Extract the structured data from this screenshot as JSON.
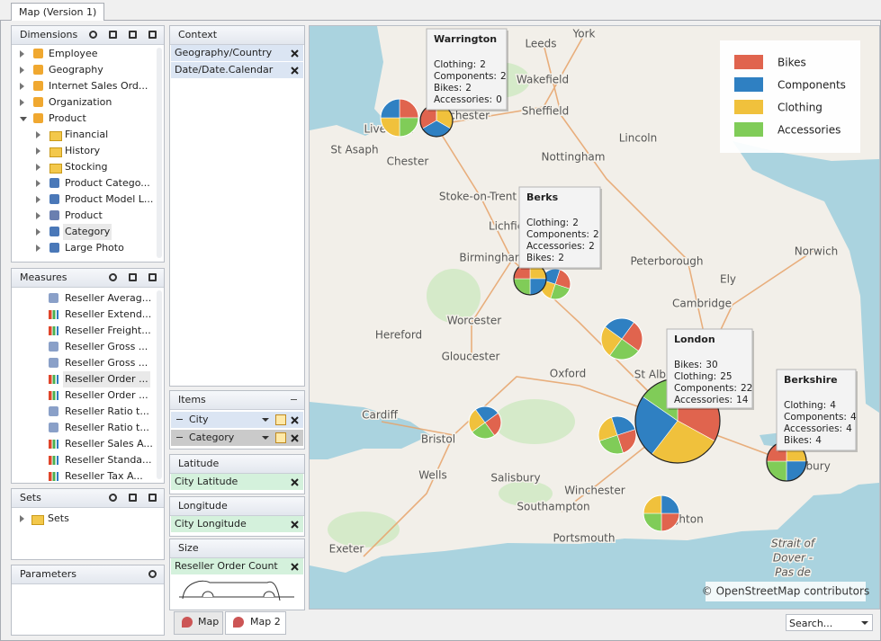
{
  "window_tab": "Map (Version 1)",
  "dimensions": {
    "title": "Dimensions",
    "items": [
      {
        "label": "Employee"
      },
      {
        "label": "Geography"
      },
      {
        "label": "Internet Sales Ord..."
      },
      {
        "label": "Organization"
      },
      {
        "label": "Product",
        "children": [
          "Financial",
          "History",
          "Stocking",
          "Product Catego...",
          "Product Model L...",
          "Product",
          "Category",
          "Large Photo"
        ]
      }
    ]
  },
  "measures": {
    "title": "Measures",
    "items": [
      "Reseller Averag...",
      "Reseller Extend...",
      "Reseller Freight...",
      "Reseller Gross ...",
      "Reseller Gross ...",
      "Reseller Order ...",
      "Reseller Order ...",
      "Reseller Ratio t...",
      "Reseller Ratio t...",
      "Reseller Sales A...",
      "Reseller Standa...",
      "Reseller Tax A..."
    ]
  },
  "sets": {
    "title": "Sets",
    "items": [
      "Sets"
    ]
  },
  "parameters": {
    "title": "Parameters"
  },
  "context": {
    "title": "Context",
    "items": [
      "Geography/Country",
      "Date/Date.Calendar"
    ]
  },
  "items_panel": {
    "title": "Items",
    "items": [
      "City",
      "Category"
    ]
  },
  "latitude": {
    "title": "Latitude",
    "item": "City Latitude"
  },
  "longitude": {
    "title": "Longitude",
    "item": "City Longitude"
  },
  "size": {
    "title": "Size",
    "item": "Reseller Order Count"
  },
  "bottom_tabs": [
    "Map",
    "Map 2"
  ],
  "search": "Search...",
  "map": {
    "legend": [
      {
        "name": "Bikes",
        "color": "#e0644e"
      },
      {
        "name": "Components",
        "color": "#2f80c2"
      },
      {
        "name": "Clothing",
        "color": "#f0c13c"
      },
      {
        "name": "Accessories",
        "color": "#80cc58"
      }
    ],
    "tooltips": [
      {
        "title": "Warrington",
        "rows": [
          {
            "label": "Clothing:",
            "value": 2
          },
          {
            "label": "Components:",
            "value": 2
          },
          {
            "label": "Bikes:",
            "value": 2
          },
          {
            "label": "Accessories:",
            "value": 0
          }
        ]
      },
      {
        "title": "Berks",
        "rows": [
          {
            "label": "Clothing:",
            "value": 2
          },
          {
            "label": "Components:",
            "value": 2
          },
          {
            "label": "Accessories:",
            "value": 2
          },
          {
            "label": "Bikes:",
            "value": 2
          }
        ]
      },
      {
        "title": "London",
        "rows": [
          {
            "label": "Bikes:",
            "value": 30
          },
          {
            "label": "Clothing:",
            "value": 25
          },
          {
            "label": "Components:",
            "value": 22
          },
          {
            "label": "Accessories:",
            "value": 14
          }
        ]
      },
      {
        "title": "Berkshire",
        "rows": [
          {
            "label": "Clothing:",
            "value": 4
          },
          {
            "label": "Components:",
            "value": 4
          },
          {
            "label": "Accessories:",
            "value": 4
          },
          {
            "label": "Bikes:",
            "value": 4
          }
        ]
      }
    ],
    "places": [
      "York",
      "Leeds",
      "Wakefield",
      "Sheffield",
      "Liverpool",
      "Manchester",
      "St Asaph",
      "Chester",
      "Lincoln",
      "Nottingham",
      "Stoke-on-Trent",
      "Lichfield",
      "Birmingham",
      "Peterborough",
      "Ely",
      "Norwich",
      "Cambridge",
      "Hereford",
      "Worcester",
      "Gloucester",
      "Oxford",
      "St Albans",
      "Cardiff",
      "Bristol",
      "Wells",
      "Salisbury",
      "Winchester",
      "Southampton",
      "Portsmouth",
      "Exeter",
      "Brighton",
      "Canterbury",
      "Strait of",
      "Dover -",
      "Pas de"
    ],
    "attribution": "© OpenStreetMap contributors"
  }
}
